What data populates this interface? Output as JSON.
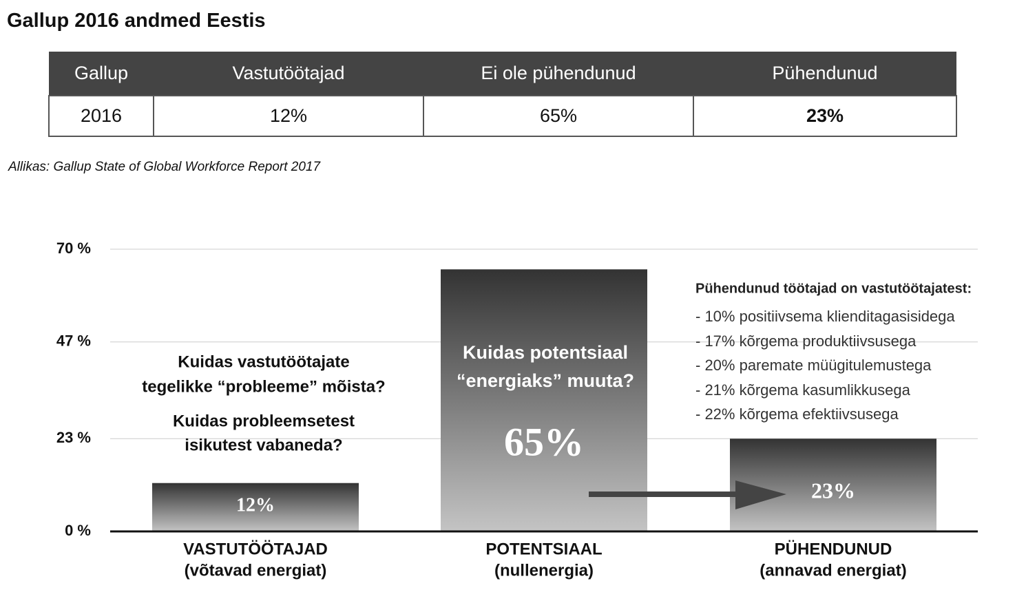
{
  "header": {
    "title": "Gallup 2016 andmed Eestis"
  },
  "table": {
    "columns": [
      "Gallup",
      "Vastutöötajad",
      "Ei ole pühendunud",
      "Pühendunud"
    ],
    "rows": [
      [
        "2016",
        "12%",
        "65%",
        "23%"
      ]
    ]
  },
  "source": "Allikas: Gallup State of Global Workforce Report 2017",
  "chart_data": {
    "type": "bar",
    "categories": [
      "VASTUTÖÖTAJAD",
      "POTENTSIAAL",
      "PÜHENDUNUD"
    ],
    "category_subtitles": [
      "(võtavad energiat)",
      "(nullenergia)",
      "(annavad energiat)"
    ],
    "values": [
      12,
      65,
      23
    ],
    "value_labels": [
      "12%",
      "65%",
      "23%"
    ],
    "ylim": [
      0,
      70
    ],
    "yticks": [
      {
        "value": 0,
        "label": "0 %"
      },
      {
        "value": 23,
        "label": "23 %"
      },
      {
        "value": 47,
        "label": "47 %"
      },
      {
        "value": 70,
        "label": "70 %"
      }
    ],
    "grid": true,
    "color_top": "#333333",
    "color_bottom": "#c4c4c4",
    "annotations": {
      "left_questions": [
        "Kuidas vastutöötajate",
        "tegelikke “probleeme” mõista?",
        "Kuidas probleemsetest",
        "isikutest vabaneda?"
      ],
      "middle_question": [
        "Kuidas potentsiaal",
        "“energiaks” muuta?"
      ],
      "right_title": "Pühendunud töötajad on vastutöötajatest:",
      "right_items": [
        "- 10% positiivsema klienditagasisidega",
        "- 17% kõrgema produktiivsusega",
        "- 20% paremate müügitulemustega",
        "- 21% kõrgema kasumlikkusega",
        "- 22% kõrgema efektiivsusega"
      ]
    }
  }
}
